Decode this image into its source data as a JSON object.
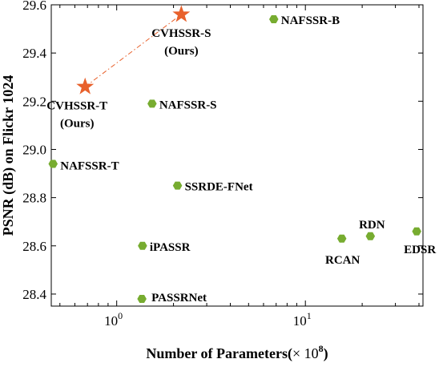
{
  "chart_data": {
    "type": "scatter",
    "xlabel_prefix": "Number of Parameters(",
    "xlabel_times": "× 10",
    "xlabel_exponent": "8",
    "xlabel_suffix": ")",
    "ylabel": "PSNR (dB) on Flickr 1024",
    "x_scale": "log",
    "xlim": [
      0.45,
      42
    ],
    "ylim": [
      28.35,
      29.6
    ],
    "x_ticks": [
      {
        "value": 1,
        "base": "10",
        "exp": "0"
      },
      {
        "value": 10,
        "base": "10",
        "exp": "1"
      }
    ],
    "y_ticks": [
      {
        "value": 28.4,
        "label": "28.4"
      },
      {
        "value": 28.6,
        "label": "28.6"
      },
      {
        "value": 28.8,
        "label": "28.8"
      },
      {
        "value": 29.0,
        "label": "29.0"
      },
      {
        "value": 29.2,
        "label": "29.2"
      },
      {
        "value": 29.4,
        "label": "29.4"
      },
      {
        "value": 29.6,
        "label": "29.6"
      }
    ],
    "grid": false,
    "colors": {
      "ours": "#e8612c",
      "others": "#77ac30",
      "line": "#e8612c",
      "axis": "#000000"
    },
    "points": [
      {
        "name": "CVHSSR-T",
        "sub": "(Ours)",
        "x": 0.68,
        "y": 29.26,
        "marker": "star",
        "group": "ours"
      },
      {
        "name": "CVHSSR-S",
        "sub": "(Ours)",
        "x": 2.2,
        "y": 29.56,
        "marker": "star",
        "group": "ours"
      },
      {
        "name": "NAFSSR-B",
        "x": 6.8,
        "y": 29.54,
        "marker": "hexagon",
        "group": "others"
      },
      {
        "name": "NAFSSR-S",
        "x": 1.54,
        "y": 29.19,
        "marker": "hexagon",
        "group": "others"
      },
      {
        "name": "NAFSSR-T",
        "x": 0.46,
        "y": 28.94,
        "marker": "hexagon",
        "group": "others"
      },
      {
        "name": "SSRDE-FNet",
        "x": 2.1,
        "y": 28.85,
        "marker": "hexagon",
        "group": "others"
      },
      {
        "name": "iPASSR",
        "x": 1.37,
        "y": 28.6,
        "marker": "hexagon",
        "group": "others"
      },
      {
        "name": "PASSRNet",
        "x": 1.36,
        "y": 28.38,
        "marker": "hexagon",
        "group": "others"
      },
      {
        "name": "RCAN",
        "x": 15.6,
        "y": 28.63,
        "marker": "hexagon",
        "group": "others"
      },
      {
        "name": "RDN",
        "x": 22.1,
        "y": 28.64,
        "marker": "hexagon",
        "group": "others"
      },
      {
        "name": "EDSR",
        "x": 38.9,
        "y": 28.66,
        "marker": "hexagon",
        "group": "others"
      }
    ],
    "connector": {
      "from": "CVHSSR-T",
      "to": "CVHSSR-S",
      "style": "dash-dot"
    }
  }
}
